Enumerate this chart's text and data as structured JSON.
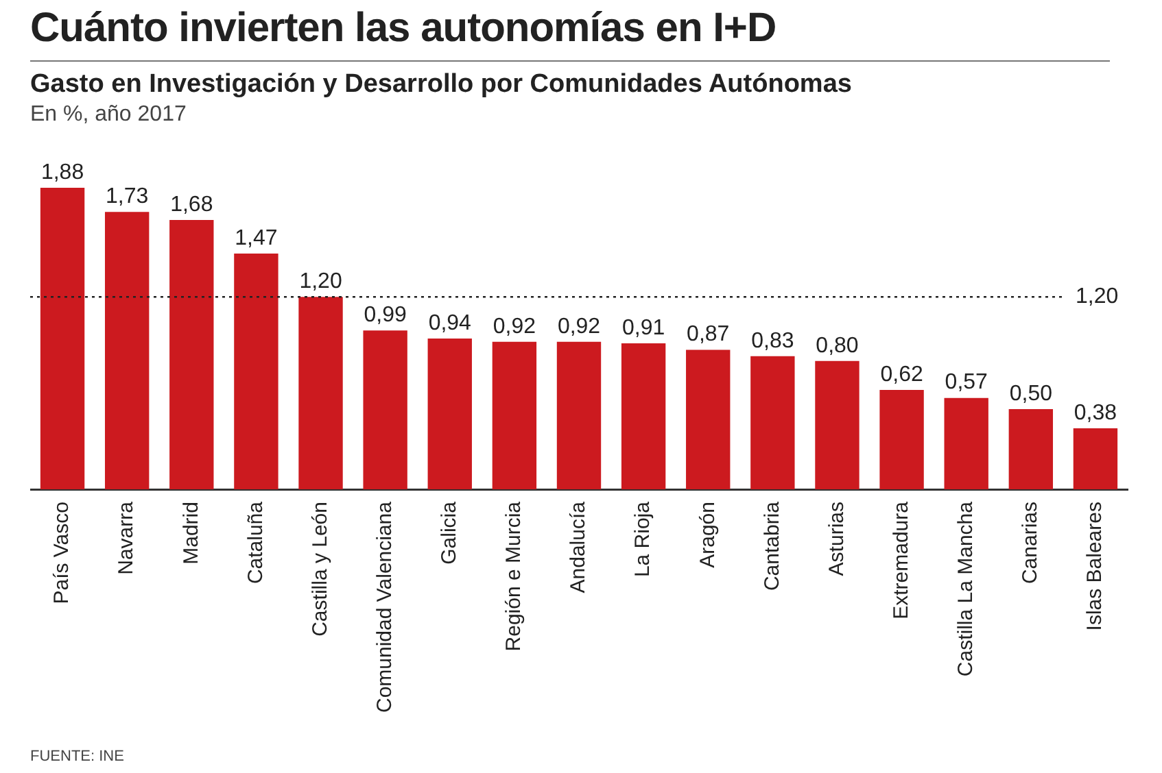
{
  "chart_data": {
    "type": "bar",
    "title": "Cuánto invierten las autonomías en I+D",
    "subtitle": "Gasto en Investigación y Desarrollo por Comunidades Autónomas",
    "categories": [
      "País Vasco",
      "Navarra",
      "Madrid",
      "Cataluña",
      "Castilla y León",
      "Comunidad Valenciana",
      "Galicia",
      "Región e Murcia",
      "Andalucía",
      "La Rioja",
      "Aragón",
      "Cantabria",
      "Asturias",
      "Extremadura",
      "Castilla La Mancha",
      "Canarias",
      "Islas Baleares"
    ],
    "values": [
      1.88,
      1.73,
      1.68,
      1.47,
      1.2,
      0.99,
      0.94,
      0.92,
      0.92,
      0.91,
      0.87,
      0.83,
      0.8,
      0.62,
      0.57,
      0.5,
      0.38
    ],
    "value_labels": [
      "1,88",
      "1,73",
      "1,68",
      "1,47",
      "1,20",
      "0,99",
      "0,94",
      "0,92",
      "0,92",
      "0,91",
      "0,87",
      "0,83",
      "0,80",
      "0,62",
      "0,57",
      "0,50",
      "0,38"
    ],
    "color": "#cc1a1f",
    "ref_lines": [
      {
        "axis": "y",
        "value": 1.2,
        "label": "1,20",
        "line_style": "dotted",
        "color": "#222222"
      }
    ],
    "tick_labels": "x",
    "grid": false,
    "legend": false,
    "annotations": [
      "En %, año 2017",
      "FUENTE: INE"
    ]
  }
}
